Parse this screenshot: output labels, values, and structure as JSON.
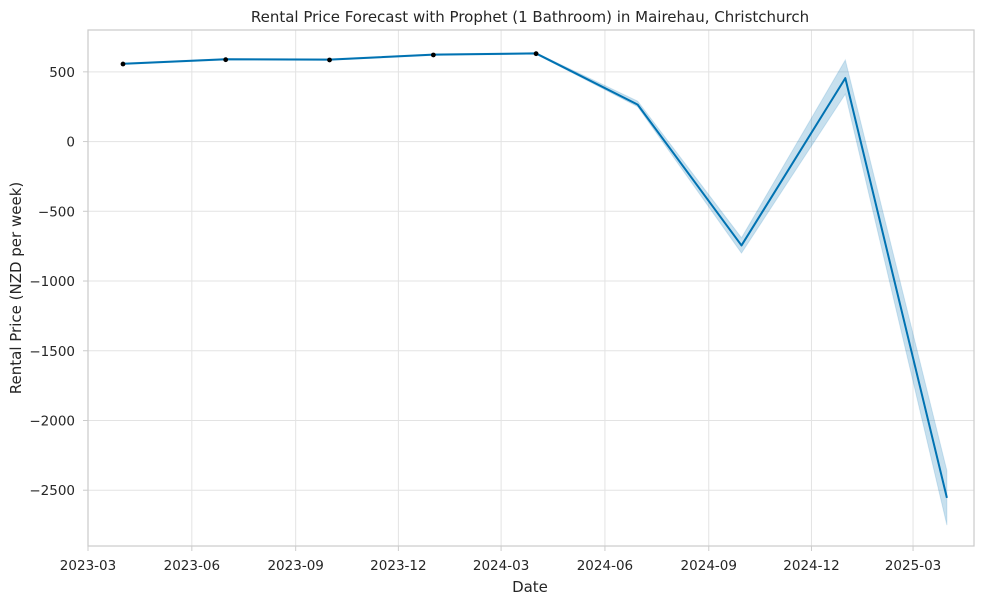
{
  "chart_data": {
    "type": "line",
    "title": "Rental Price Forecast with Prophet (1 Bathroom) in Mairehau, Christchurch",
    "xlabel": "Date",
    "ylabel": "Rental Price (NZD per week)",
    "x_axis_type": "date",
    "xlim": [
      "2023-03-01",
      "2025-04-24"
    ],
    "ylim": [
      -2900,
      800
    ],
    "xticks": [
      "2023-03-01",
      "2023-06-01",
      "2023-09-01",
      "2023-12-01",
      "2024-03-01",
      "2024-06-01",
      "2024-09-01",
      "2024-12-01",
      "2025-03-01"
    ],
    "xtick_labels": [
      "2023-03",
      "2023-06",
      "2023-09",
      "2023-12",
      "2024-03",
      "2024-06",
      "2024-09",
      "2024-12",
      "2025-03"
    ],
    "yticks": [
      500,
      0,
      -500,
      -1000,
      -1500,
      -2000,
      -2500
    ],
    "ytick_labels": [
      "500",
      "0",
      "−500",
      "−1000",
      "−1500",
      "−2000",
      "−2500"
    ],
    "grid": true,
    "legend": "none",
    "colors": {
      "forecast_line": "#0072b2",
      "uncertainty_band": "#0072b2",
      "observed_points": "#000000",
      "grid": "#e3e3e3",
      "spine": "#cccccc",
      "text": "#262626"
    },
    "observed": {
      "x": [
        "2023-04-01",
        "2023-07-01",
        "2023-10-01",
        "2024-01-01",
        "2024-04-01"
      ],
      "y": [
        556,
        587,
        585,
        621,
        630
      ]
    },
    "forecast": {
      "x": [
        "2023-04-01",
        "2023-07-01",
        "2023-10-01",
        "2024-01-01",
        "2024-04-01",
        "2024-06-30",
        "2024-09-30",
        "2024-12-31",
        "2025-03-31"
      ],
      "yhat": [
        558,
        590,
        588,
        623,
        632,
        265,
        -745,
        455,
        -2555
      ],
      "yhat_lower": [
        553,
        585,
        583,
        618,
        627,
        250,
        -800,
        340,
        -2750
      ],
      "yhat_upper": [
        563,
        595,
        593,
        628,
        637,
        290,
        -690,
        585,
        -2360
      ]
    }
  }
}
